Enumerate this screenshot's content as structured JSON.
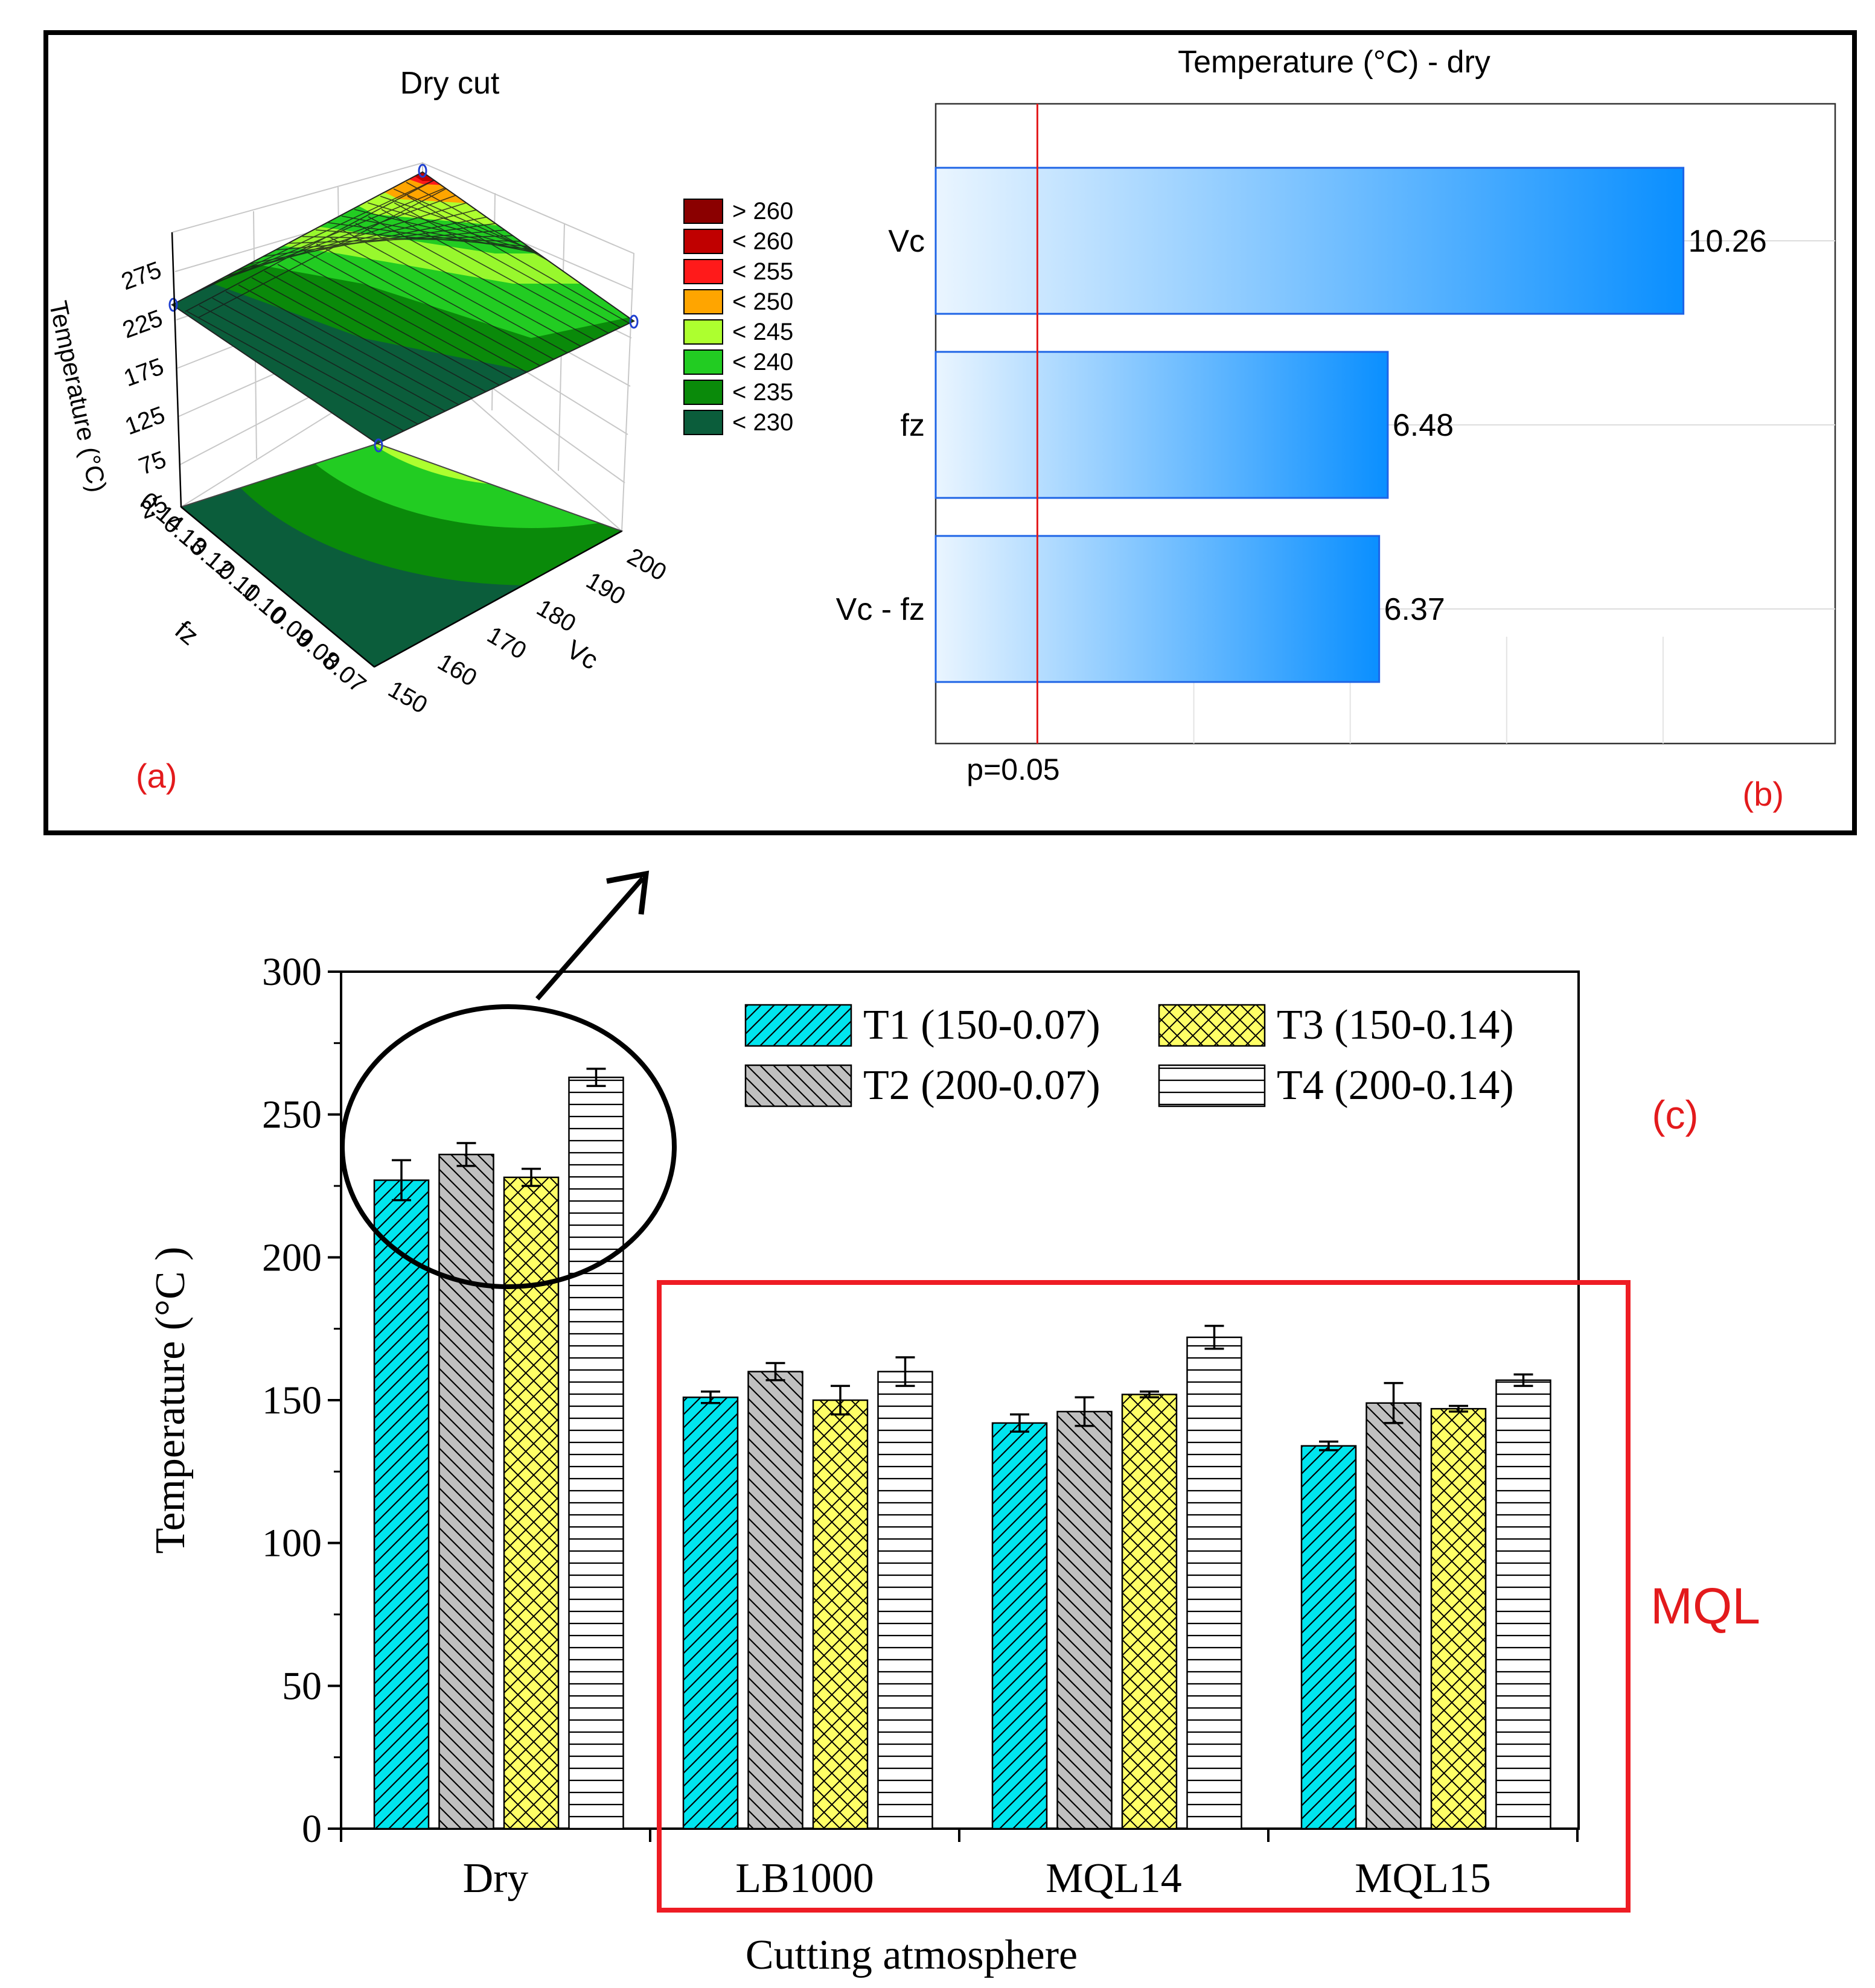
{
  "chart_data": [
    {
      "panel": "(a)",
      "type": "surface3d",
      "title": "Dry cut",
      "zlabel": "Temperature (°C)",
      "xlabel": "Vc",
      "ylabel": "fz",
      "z_ticks": [
        "275",
        "225",
        "175",
        "125",
        "75",
        "25"
      ],
      "vc_ticks": [
        "150",
        "160",
        "170",
        "180",
        "190",
        "200"
      ],
      "fz_ticks": [
        "0.07",
        "0.08",
        "0.09",
        "0.10",
        "0.11",
        "0.12",
        "0.13",
        "0.14"
      ],
      "legend": [
        {
          "label": "> 260",
          "color": "#8b0000"
        },
        {
          "label": "< 260",
          "color": "#c00000"
        },
        {
          "label": "< 255",
          "color": "#ff1a1a"
        },
        {
          "label": "< 250",
          "color": "#ffa500"
        },
        {
          "label": "< 245",
          "color": "#adff2f"
        },
        {
          "label": "< 240",
          "color": "#22cc22"
        },
        {
          "label": "< 235",
          "color": "#0a8a0a"
        },
        {
          "label": "< 230",
          "color": "#0b5d3b"
        }
      ]
    },
    {
      "panel": "(b)",
      "type": "bar",
      "orientation": "horizontal",
      "title": "Temperature (°C) - dry",
      "categories": [
        "Vc",
        "fz",
        "Vc - fz"
      ],
      "values": [
        10.26,
        6.48,
        6.37
      ],
      "value_labels": [
        "10.26",
        "6.48",
        "6.37"
      ],
      "reference_label": "p=0.05",
      "reference_value": 2.0,
      "xlim": [
        0.7,
        12.2
      ]
    },
    {
      "panel": "(c)",
      "type": "bar",
      "xlabel": "Cutting atmosphere",
      "ylabel": "Temperature (°C )",
      "ylim": [
        0,
        300
      ],
      "yticks": [
        "0",
        "50",
        "100",
        "150",
        "200",
        "250",
        "300"
      ],
      "categories": [
        "Dry",
        "LB1000",
        "MQL14",
        "MQL15"
      ],
      "series": [
        {
          "name": "T1 (150-0.07)",
          "color": "#00e5ee",
          "values": [
            227,
            151,
            142,
            134
          ],
          "errors": [
            7,
            2,
            3,
            1.5
          ]
        },
        {
          "name": "T2 (200-0.07)",
          "color": "#c0c0c0",
          "values": [
            236,
            160,
            146,
            149
          ],
          "errors": [
            4,
            3,
            5,
            7
          ]
        },
        {
          "name": "T3 (150-0.14)",
          "color": "#ffff66",
          "values": [
            228,
            150,
            152,
            147
          ],
          "errors": [
            3,
            5,
            1,
            1
          ]
        },
        {
          "name": "T4 (200-0.14)",
          "color": "#ffffff",
          "values": [
            263,
            160,
            172,
            157
          ],
          "errors": [
            3,
            5,
            4,
            2
          ]
        }
      ],
      "annotations": [
        "(c)",
        "MQL"
      ]
    }
  ],
  "panel_labels": {
    "a": "(a)",
    "b": "(b)"
  }
}
